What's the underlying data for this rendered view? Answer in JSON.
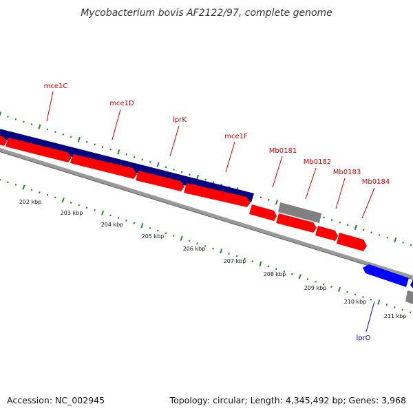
{
  "title": "Mycobacterium bovis AF2122/97, complete genome",
  "footer": {
    "accession": "Accession: NC_002945",
    "topology": "Topology: circular; Length: 4,345,492 bp; Genes: 3,968"
  },
  "colors": {
    "forward_gene": "#ff0000",
    "reverse_gene": "#0000ff",
    "operon_band": "#000080",
    "other_feature": "#808080",
    "tick": "#228b22",
    "label_forward": "#cc0000",
    "label_reverse": "#0000cc"
  },
  "gene_labels": [
    {
      "name": "mce1C",
      "strand": "forward"
    },
    {
      "name": "mce1D",
      "strand": "forward"
    },
    {
      "name": "lprK",
      "strand": "forward"
    },
    {
      "name": "mce1F",
      "strand": "forward"
    },
    {
      "name": "Mb0181",
      "strand": "forward"
    },
    {
      "name": "Mb0182",
      "strand": "forward"
    },
    {
      "name": "Mb0183",
      "strand": "forward"
    },
    {
      "name": "Mb0184",
      "strand": "forward"
    },
    {
      "name": "lprO",
      "strand": "reverse"
    }
  ],
  "kbp_ticks": [
    "202 kbp",
    "203 kbp",
    "204 kbp",
    "205 kbp",
    "206 kbp",
    "207 kbp",
    "208 kbp",
    "209 kbp",
    "210 kbp",
    "211 kbp"
  ]
}
